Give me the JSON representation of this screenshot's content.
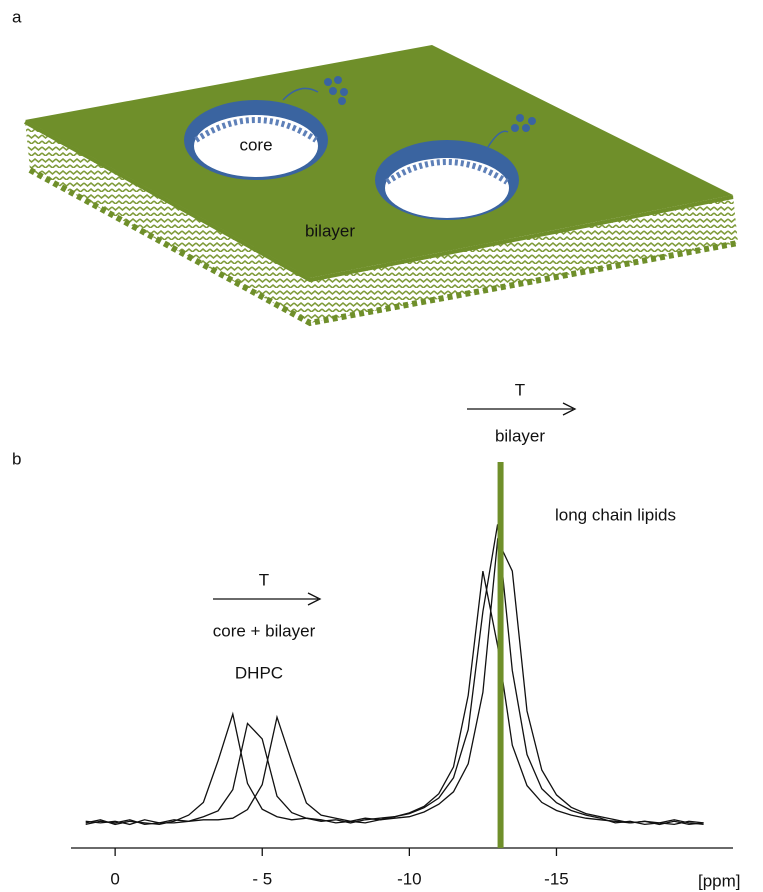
{
  "diagram": {
    "label": "a",
    "core_label": "core",
    "bilayer_label": "bilayer"
  },
  "chart_data": {
    "type": "line",
    "label": "b",
    "xlabel": "[ppm]",
    "xlim": [
      1.5,
      -21
    ],
    "xticks": [
      0,
      {
        "value": -5,
        "label": "- 5"
      },
      -10,
      -15
    ],
    "ylim": [
      0,
      110
    ],
    "x": [
      1,
      0.5,
      0,
      -0.5,
      -1,
      -1.5,
      -2,
      -2.5,
      -3,
      -3.5,
      -4,
      -4.5,
      -5,
      -5.5,
      -6,
      -6.5,
      -7,
      -7.5,
      -8,
      -8.5,
      -9,
      -9.5,
      -10,
      -10.5,
      -11,
      -11.5,
      -12,
      -12.5,
      -13,
      -13.5,
      -14,
      -14.5,
      -15,
      -15.5,
      -16,
      -16.5,
      -17,
      -17.5,
      -18,
      -18.5,
      -19,
      -19.5,
      -20
    ],
    "series": [
      {
        "color": "#111111",
        "values": [
          1,
          2,
          0.5,
          1.5,
          1,
          0.5,
          1.5,
          3.5,
          7.6,
          21,
          36,
          13.7,
          5.4,
          3,
          2,
          2.5,
          1.5,
          2,
          1,
          2,
          2.5,
          3,
          4.2,
          6.3,
          10.4,
          19,
          42,
          82,
          58,
          26,
          13,
          7.6,
          5,
          3.5,
          2.5,
          2,
          1.5,
          1,
          1.5,
          0.5,
          1.5,
          0.5,
          1
        ]
      },
      {
        "color": "#111111",
        "values": [
          0.5,
          1.5,
          1,
          2,
          0.5,
          1,
          2,
          1.5,
          3,
          4.9,
          11.7,
          33,
          28,
          9.6,
          4.3,
          2.5,
          2,
          1,
          1.5,
          2.5,
          2,
          3,
          4,
          5.9,
          9,
          15.5,
          31,
          69,
          97,
          50,
          23,
          12,
          7.5,
          5,
          3.5,
          2.5,
          1,
          1.5,
          0.5,
          1,
          2,
          1,
          0.5
        ]
      },
      {
        "color": "#111111",
        "values": [
          1.5,
          1,
          1.5,
          0.5,
          2,
          1,
          1,
          1.5,
          2,
          2,
          2.5,
          5.3,
          13.3,
          35,
          20.7,
          7.4,
          3.5,
          2.5,
          1.5,
          1,
          2,
          2.5,
          3,
          4.5,
          7,
          11,
          20,
          43,
          92,
          82,
          37,
          18,
          10,
          6,
          4,
          3,
          2,
          1,
          1.5,
          1,
          0.5,
          1.5,
          1
        ]
      }
    ],
    "vline": {
      "value": -13.1,
      "color": "#6f8f2a"
    },
    "annotations": {
      "arrow_label_left": "T",
      "core_bilayer": "core + bilayer",
      "dhpc": "DHPC",
      "arrow_label_right": "T",
      "bilayer": "bilayer",
      "long_chain": "long chain lipids"
    }
  }
}
